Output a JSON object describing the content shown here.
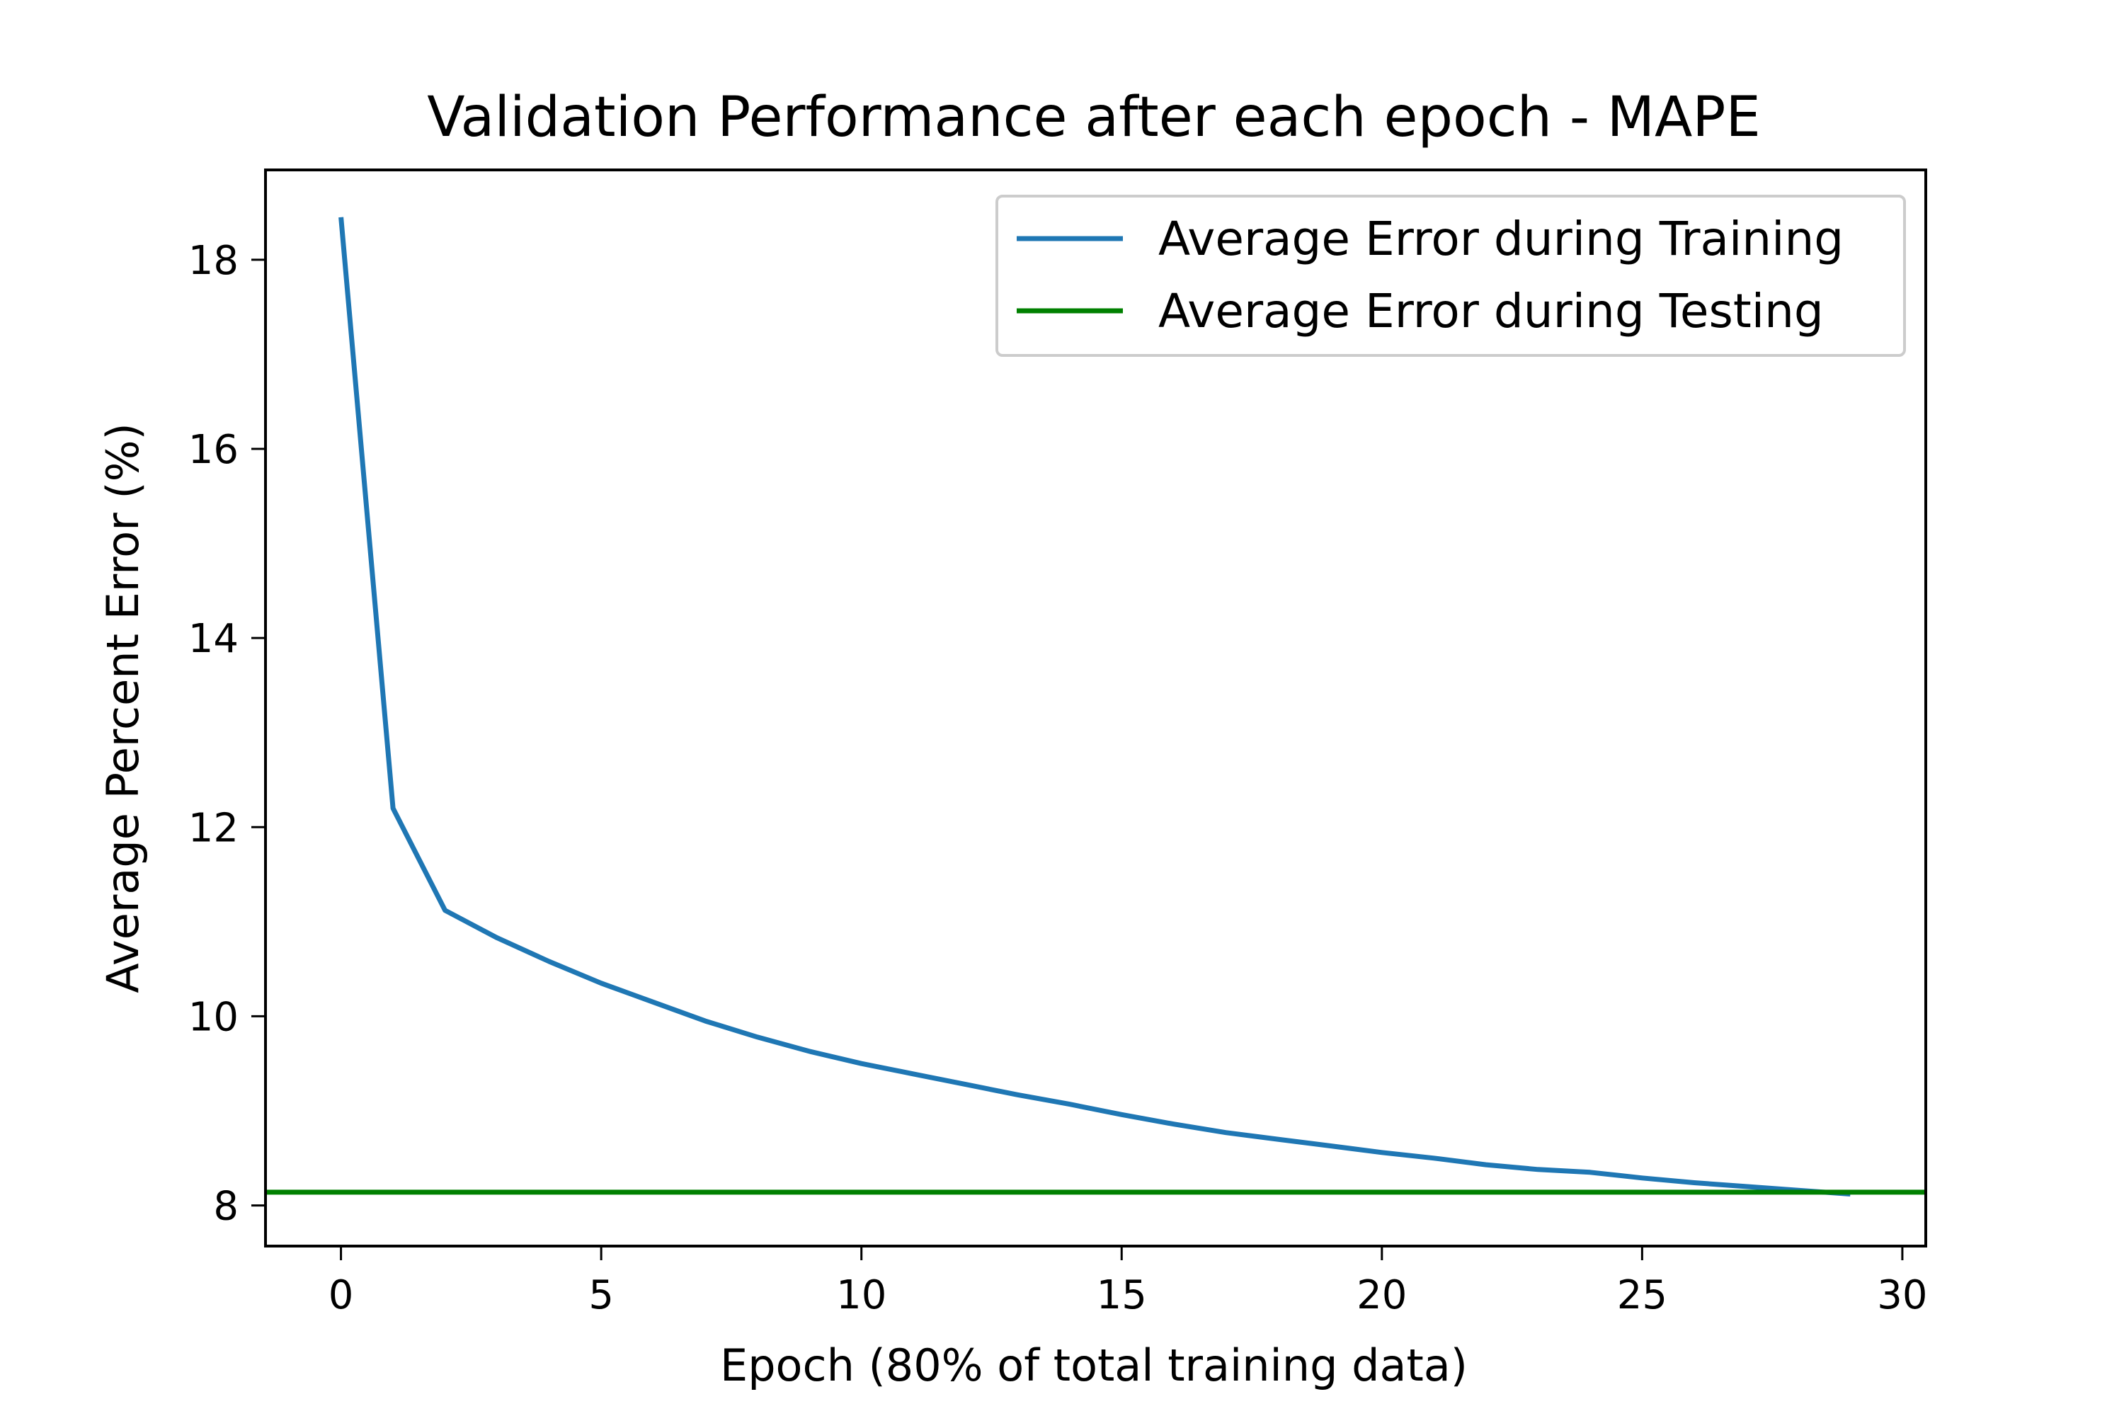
{
  "chart_data": {
    "type": "line",
    "title": "Validation Performance after each epoch - MAPE",
    "xlabel": "Epoch (80% of total training data)",
    "ylabel": "Average Percent Error (%)",
    "xlim": [
      -1.45,
      30.45
    ],
    "ylim": [
      7.57,
      18.95
    ],
    "xticks": [
      0,
      5,
      10,
      15,
      20,
      25,
      30
    ],
    "yticks": [
      8,
      10,
      12,
      14,
      16,
      18
    ],
    "grid": false,
    "legend_position": "top-right",
    "series": [
      {
        "name": "Average Error during Training",
        "color": "#1f77b4",
        "kind": "line",
        "x": [
          0,
          1,
          2,
          3,
          4,
          5,
          6,
          7,
          8,
          9,
          10,
          11,
          12,
          13,
          14,
          15,
          16,
          17,
          18,
          19,
          20,
          21,
          22,
          23,
          24,
          25,
          26,
          27,
          28,
          29
        ],
        "y": [
          18.45,
          12.2,
          11.12,
          10.83,
          10.58,
          10.35,
          10.15,
          9.95,
          9.78,
          9.63,
          9.5,
          9.39,
          9.28,
          9.17,
          9.07,
          8.96,
          8.86,
          8.77,
          8.7,
          8.63,
          8.56,
          8.5,
          8.43,
          8.38,
          8.35,
          8.29,
          8.24,
          8.2,
          8.16,
          8.12
        ]
      },
      {
        "name": "Average Error during Testing",
        "color": "#008000",
        "kind": "hline",
        "y": 8.14
      }
    ]
  }
}
